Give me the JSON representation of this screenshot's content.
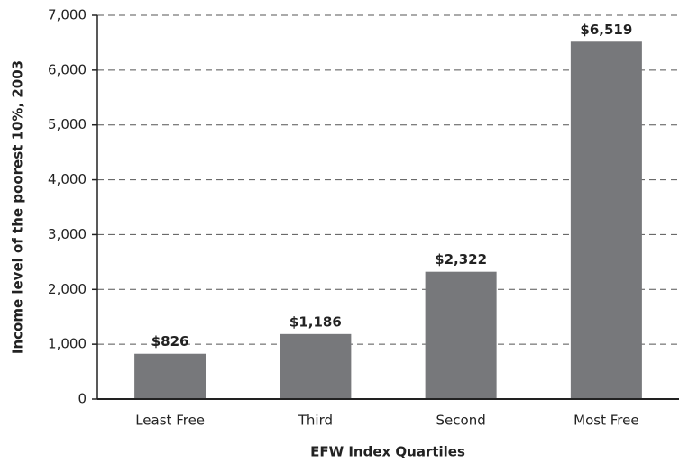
{
  "chart_data": {
    "type": "bar",
    "x_label": "EFW Index Quartiles",
    "y_label": "Income level of the poorest 10%, 2003",
    "categories": [
      "Least Free",
      "Third",
      "Second",
      "Most Free"
    ],
    "values": [
      826,
      1186,
      2322,
      6519
    ],
    "value_labels": [
      "$826",
      "$1,186",
      "$2,322",
      "$6,519"
    ],
    "color": "#77787b",
    "ylim": [
      0,
      7000
    ],
    "yticks": [
      0,
      {
        "value": 1000,
        "label": "1,000"
      },
      {
        "value": 2000,
        "label": "2,000"
      },
      {
        "value": 3000,
        "label": "3,000"
      },
      {
        "value": 4000,
        "label": "4,000"
      },
      {
        "value": 5000,
        "label": "5,000"
      },
      {
        "value": 6000,
        "label": "6,000"
      },
      {
        "value": 7000,
        "label": "7,000"
      }
    ],
    "grid": true
  }
}
